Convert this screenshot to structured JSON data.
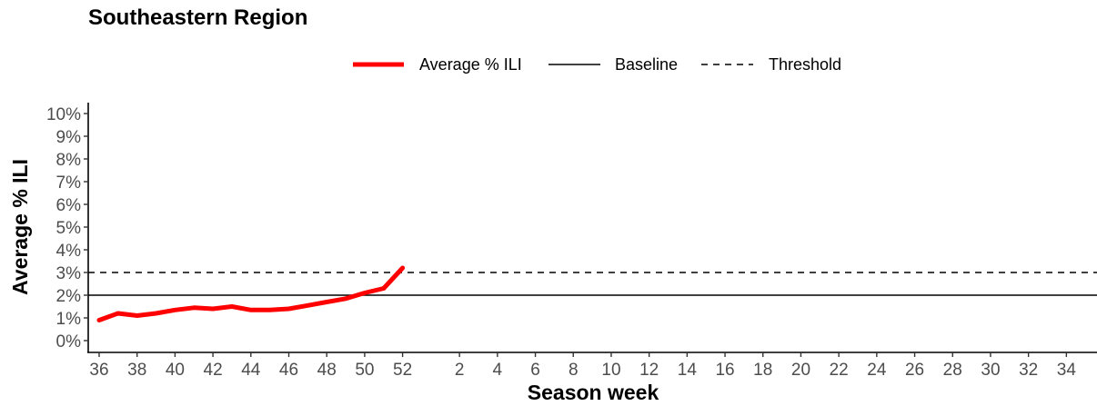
{
  "chart_data": {
    "type": "line",
    "title": "Southeastern Region",
    "xlabel": "Season week",
    "ylabel": "Average % ILI",
    "x_ticks": [
      36,
      38,
      40,
      42,
      44,
      46,
      48,
      50,
      52,
      2,
      4,
      6,
      8,
      10,
      12,
      14,
      16,
      18,
      20,
      22,
      24,
      26,
      28,
      30,
      32,
      34
    ],
    "y_ticks": [
      "0%",
      "1%",
      "2%",
      "3%",
      "4%",
      "5%",
      "6%",
      "7%",
      "8%",
      "9%",
      "10%"
    ],
    "ylim": [
      0,
      10
    ],
    "legend_position": "top-center",
    "series": [
      {
        "name": "Average % ILI",
        "color": "#ff0000",
        "style": "solid-thick",
        "x": [
          36,
          37,
          38,
          39,
          40,
          41,
          42,
          43,
          44,
          45,
          46,
          47,
          48,
          49,
          50,
          51,
          52
        ],
        "values": [
          0.9,
          1.2,
          1.1,
          1.2,
          1.35,
          1.45,
          1.4,
          1.5,
          1.35,
          1.35,
          1.4,
          1.55,
          1.7,
          1.85,
          2.1,
          2.3,
          3.2
        ]
      }
    ],
    "reference_lines": [
      {
        "name": "Baseline",
        "value": 2.0,
        "color": "#000000",
        "style": "solid"
      },
      {
        "name": "Threshold",
        "value": 3.0,
        "color": "#000000",
        "style": "dashed"
      }
    ]
  }
}
